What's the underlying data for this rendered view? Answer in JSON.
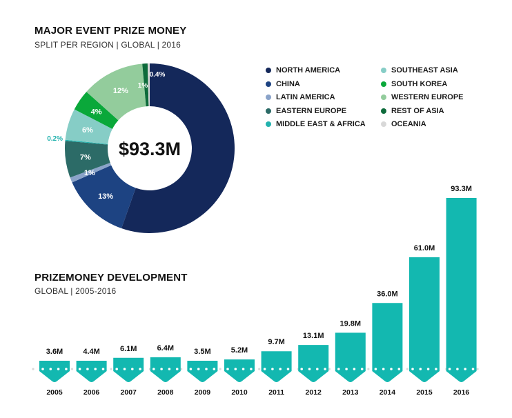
{
  "donut": {
    "title": "MAJOR EVENT PRIZE MONEY",
    "subtitle": "SPLIT PER REGION | GLOBAL | 2016",
    "center_label": "$93.3M"
  },
  "bars": {
    "title": "PRIZEMONEY DEVELOPMENT",
    "subtitle": "GLOBAL | 2005-2016"
  },
  "colors": {
    "bar": "#13b8b0",
    "dot": "#ffffff",
    "baseline_dot": "#d9d9d9"
  },
  "chart_data": [
    {
      "type": "pie",
      "variant": "donut",
      "title": "MAJOR EVENT PRIZE MONEY",
      "subtitle": "SPLIT PER REGION | GLOBAL | 2016",
      "center_label": "$93.3M",
      "unit": "%",
      "legend_position": "right",
      "slices": [
        {
          "name": "NORTH AMERICA",
          "value": 55.4,
          "label": "",
          "color": "#14285a"
        },
        {
          "name": "CHINA",
          "value": 13,
          "label": "13%",
          "color": "#1d4382"
        },
        {
          "name": "LATIN AMERICA",
          "value": 1,
          "label": "1%",
          "color": "#8aa3c9"
        },
        {
          "name": "EASTERN EUROPE",
          "value": 7,
          "label": "7%",
          "color": "#2c6b67"
        },
        {
          "name": "MIDDLE EAST & AFRICA",
          "value": 0.2,
          "label": "0.2%",
          "color": "#23b2ae"
        },
        {
          "name": "SOUTHEAST ASIA",
          "value": 6,
          "label": "6%",
          "color": "#86cdc6"
        },
        {
          "name": "SOUTH KOREA",
          "value": 4,
          "label": "4%",
          "color": "#0aa83a"
        },
        {
          "name": "WESTERN EUROPE",
          "value": 12,
          "label": "12%",
          "color": "#93cc9c"
        },
        {
          "name": "REST OF ASIA",
          "value": 1,
          "label": "1%",
          "color": "#0e6b3b"
        },
        {
          "name": "OCEANIA",
          "value": 0.4,
          "label": "0.4%",
          "color": "#d8d8d8"
        }
      ],
      "legend": [
        {
          "name": "NORTH AMERICA",
          "color": "#14285a"
        },
        {
          "name": "CHINA",
          "color": "#1d4382"
        },
        {
          "name": "LATIN AMERICA",
          "color": "#8aa3c9"
        },
        {
          "name": "EASTERN EUROPE",
          "color": "#2c6b67"
        },
        {
          "name": "MIDDLE EAST & AFRICA",
          "color": "#23b2ae"
        },
        {
          "name": "SOUTHEAST ASIA",
          "color": "#86cdc6"
        },
        {
          "name": "SOUTH KOREA",
          "color": "#0aa83a"
        },
        {
          "name": "WESTERN EUROPE",
          "color": "#93cc9c"
        },
        {
          "name": "REST OF ASIA",
          "color": "#0e6b3b"
        },
        {
          "name": "OCEANIA",
          "color": "#d8d8d8"
        }
      ]
    },
    {
      "type": "bar",
      "title": "PRIZEMONEY DEVELOPMENT",
      "subtitle": "GLOBAL | 2005-2016",
      "xlabel": "",
      "ylabel": "",
      "unit": "M USD",
      "grid": false,
      "categories": [
        "2005",
        "2006",
        "2007",
        "2008",
        "2009",
        "2010",
        "2011",
        "2012",
        "2013",
        "2014",
        "2015",
        "2016"
      ],
      "values": [
        3.6,
        4.4,
        6.1,
        6.4,
        3.5,
        5.2,
        9.7,
        13.1,
        19.8,
        36.0,
        61.0,
        93.3
      ],
      "data_labels": [
        "3.6M",
        "4.4M",
        "6.1M",
        "6.4M",
        "3.5M",
        "5.2M",
        "9.7M",
        "13.1M",
        "19.8M",
        "36.0M",
        "61.0M",
        "93.3M"
      ],
      "ylim": [
        0,
        93.3
      ]
    }
  ]
}
